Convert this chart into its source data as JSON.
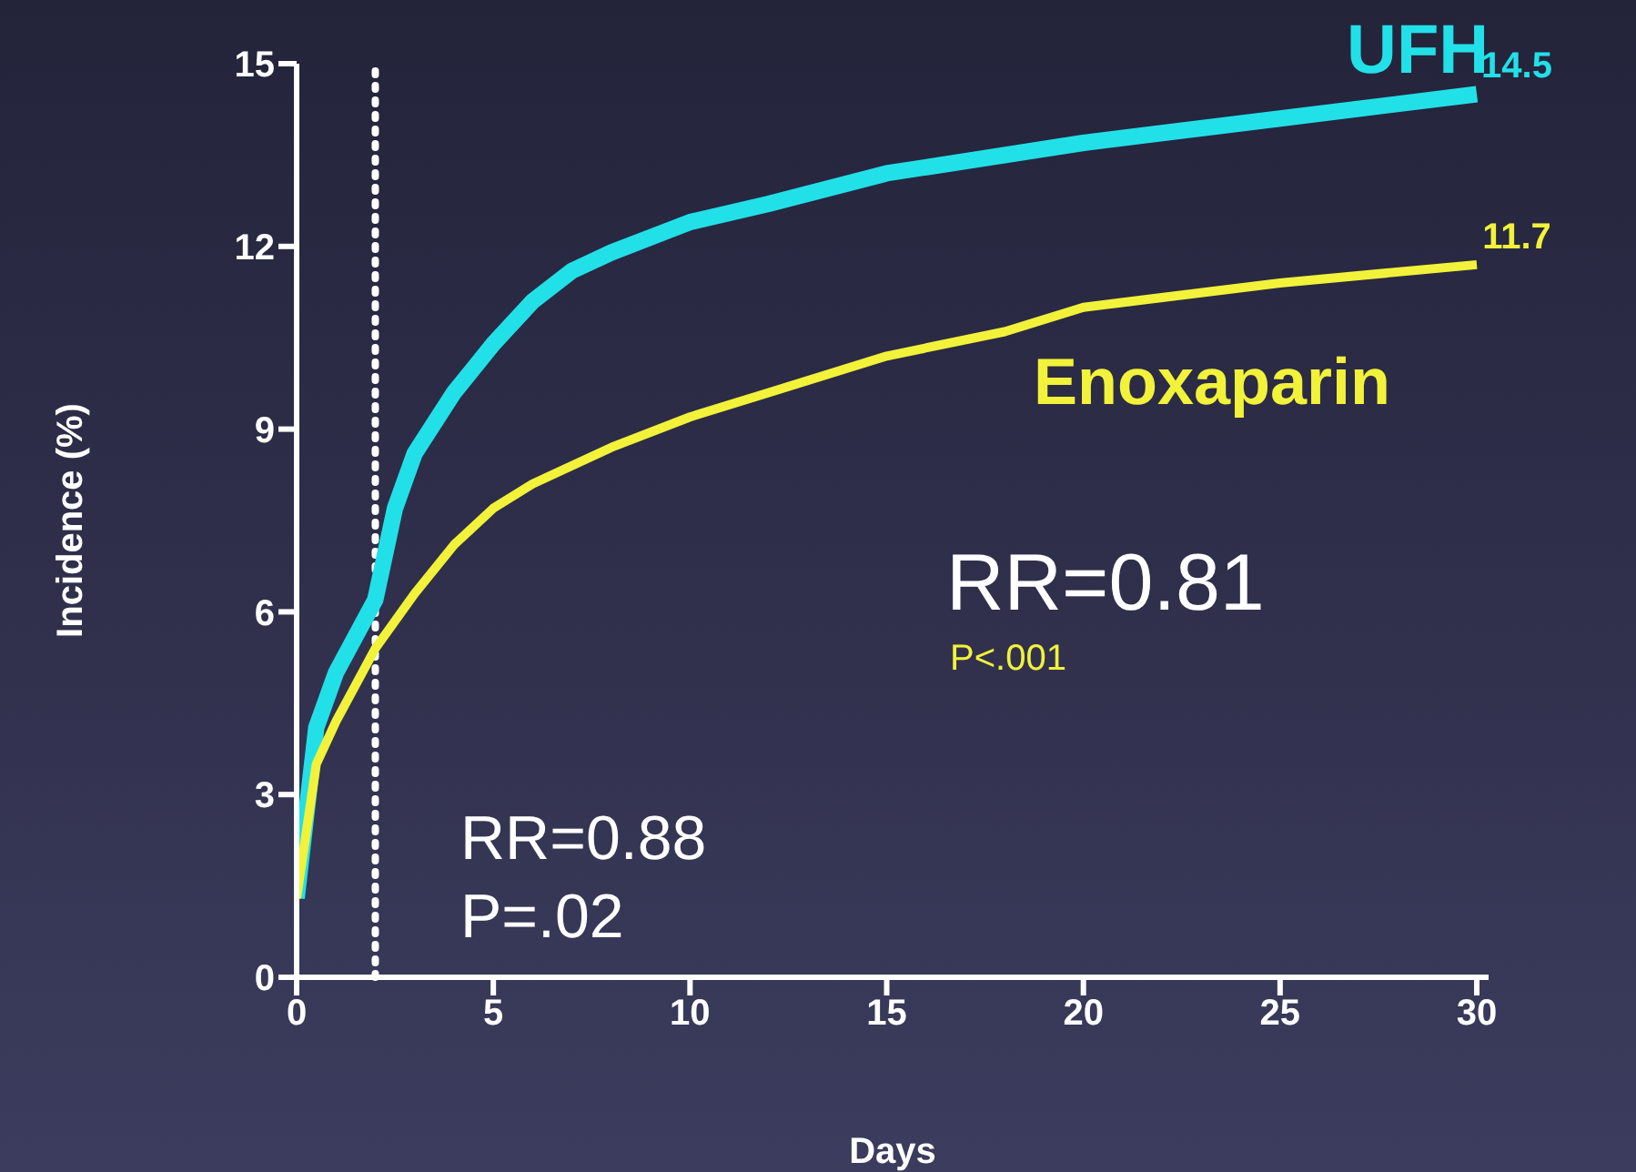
{
  "chart_data": {
    "type": "line",
    "xlabel": "Days",
    "ylabel": "Incidence (%)",
    "xlim": [
      0,
      30.3
    ],
    "xticks": [
      0,
      5,
      10,
      15,
      20,
      25,
      30
    ],
    "ylim": [
      0,
      15
    ],
    "yticks": [
      0,
      3,
      6,
      9,
      12,
      15
    ],
    "marker": "none",
    "line_style": "solid",
    "series": [
      {
        "name": "UFH",
        "color": "#22e0e8",
        "x": [
          0,
          0.5,
          1,
          2,
          2.5,
          3,
          4,
          5,
          6,
          7,
          8,
          10,
          12,
          15,
          20,
          25,
          30
        ],
        "values": [
          1.3,
          4.1,
          5.0,
          6.2,
          7.7,
          8.6,
          9.6,
          10.4,
          11.1,
          11.6,
          11.9,
          12.4,
          12.7,
          13.2,
          13.7,
          14.1,
          14.5
        ]
      },
      {
        "name": "Enoxaparin",
        "color": "#f2f23a",
        "x": [
          0,
          0.5,
          1,
          2,
          3,
          4,
          5,
          6,
          8,
          10,
          12,
          15,
          18,
          20,
          25,
          30
        ],
        "values": [
          1.3,
          3.5,
          4.2,
          5.4,
          6.3,
          7.1,
          7.7,
          8.1,
          8.7,
          9.2,
          9.6,
          10.2,
          10.6,
          11.0,
          11.4,
          11.7
        ]
      }
    ],
    "ref_lines": [
      {
        "axis": "x",
        "value": 2,
        "color": "#ffffff",
        "line_style": "dotted"
      }
    ],
    "annotations": [
      {
        "text": "14.5",
        "x": 30,
        "y": 14.5
      },
      {
        "text": "11.7",
        "x": 30,
        "y": 11.7
      },
      "RR=0.81",
      "P<.001",
      "RR=0.88",
      "P=.02"
    ]
  }
}
